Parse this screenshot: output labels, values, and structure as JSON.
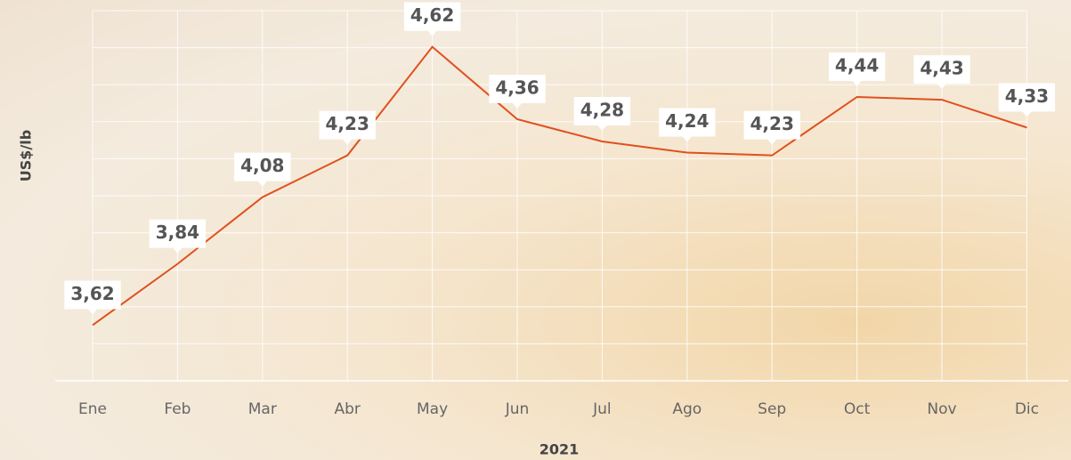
{
  "chart_data": {
    "type": "line",
    "xlabel": "2021",
    "ylabel": "US$/lb",
    "categories": [
      "Ene",
      "Feb",
      "Mar",
      "Abr",
      "May",
      "Jun",
      "Jul",
      "Ago",
      "Sep",
      "Oct",
      "Nov",
      "Dic"
    ],
    "series": [
      {
        "name": "US$/lb",
        "color": "#e0501e",
        "values": [
          3.62,
          3.84,
          4.08,
          4.23,
          4.62,
          4.36,
          4.28,
          4.24,
          4.23,
          4.44,
          4.43,
          4.33
        ],
        "value_labels": [
          "3,62",
          "3,84",
          "4,08",
          "4,23",
          "4,62",
          "4,36",
          "4,28",
          "4,24",
          "4,23",
          "4,44",
          "4,43",
          "4,33"
        ]
      }
    ],
    "ylim": [
      3.42,
      4.75
    ],
    "yticks": [
      3.42,
      3.553,
      3.686,
      3.819,
      3.952,
      4.085,
      4.218,
      4.351,
      4.484,
      4.617,
      4.75
    ],
    "grid": true
  }
}
